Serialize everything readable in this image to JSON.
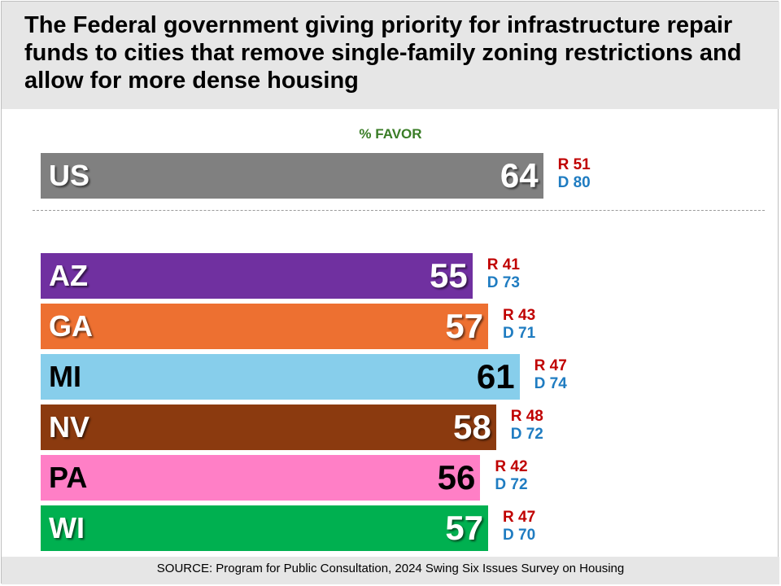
{
  "title": "The Federal government giving priority for infrastructure repair funds to cities that remove single-family zoning restrictions and allow for more dense housing",
  "source": "SOURCE: Program for Public Consultation, 2024 Swing Six Issues Survey on Housing",
  "chart_data": {
    "type": "bar",
    "orientation": "horizontal",
    "subtitle": "% FAVOR",
    "xlim": [
      0,
      100
    ],
    "grid": false,
    "legend": "none",
    "groups": [
      {
        "name": "national",
        "rows": [
          {
            "category": "US",
            "value": 64,
            "r_label": "R 51",
            "d_label": "D 80",
            "color": "#808080",
            "text": "white"
          }
        ]
      },
      {
        "name": "states",
        "rows": [
          {
            "category": "AZ",
            "value": 55,
            "r_label": "R 41",
            "d_label": "D 73",
            "color": "#7030a0",
            "text": "white"
          },
          {
            "category": "GA",
            "value": 57,
            "r_label": "R 43",
            "d_label": "D 71",
            "color": "#ed7031",
            "text": "white"
          },
          {
            "category": "MI",
            "value": 61,
            "r_label": "R 47",
            "d_label": "D 74",
            "color": "#87ceeb",
            "text": "dark"
          },
          {
            "category": "NV",
            "value": 58,
            "r_label": "R 48",
            "d_label": "D 72",
            "color": "#8b3a0f",
            "text": "white"
          },
          {
            "category": "PA",
            "value": 56,
            "r_label": "R 42",
            "d_label": "D 72",
            "color": "#ff7fc6",
            "text": "dark"
          },
          {
            "category": "WI",
            "value": 57,
            "r_label": "R 47",
            "d_label": "D 70",
            "color": "#00b050",
            "text": "white"
          }
        ]
      }
    ]
  }
}
